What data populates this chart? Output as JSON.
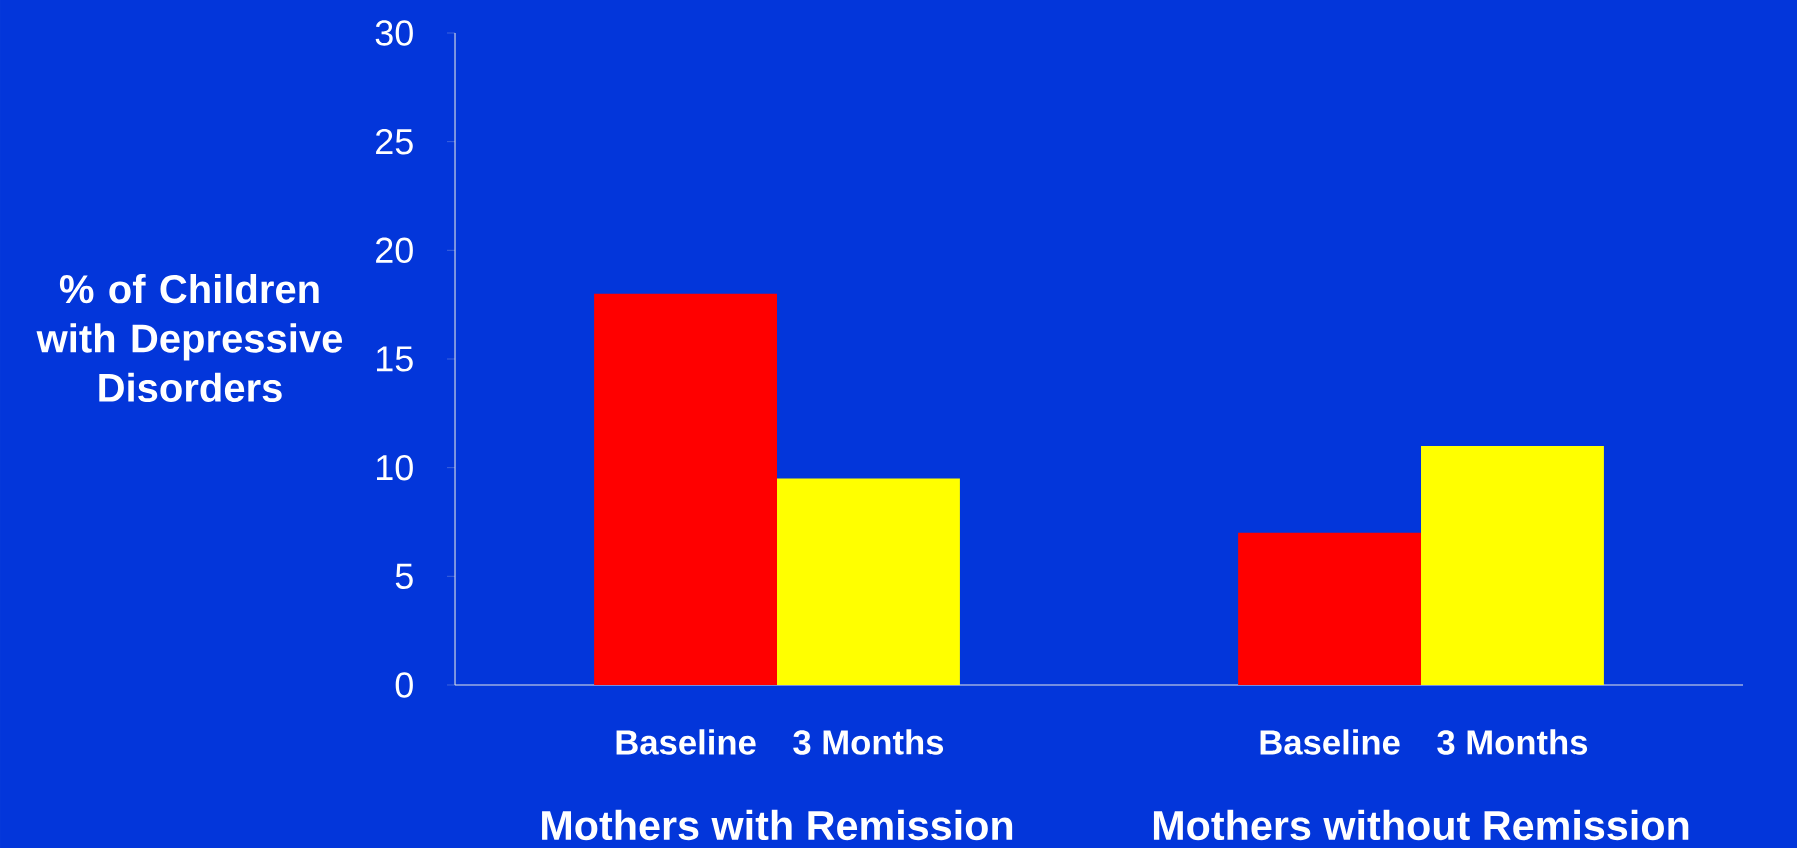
{
  "chart_data": {
    "type": "bar",
    "ylabel": "% of Children with Depressive Disorders",
    "categories": [
      "Mothers with Remission",
      "Mothers without Remission"
    ],
    "series": [
      {
        "name": "Baseline",
        "color": "#ff0000",
        "values": [
          18,
          7
        ]
      },
      {
        "name": "3 Months",
        "color": "#ffff00",
        "values": [
          9.5,
          11
        ]
      }
    ],
    "ylim": [
      0,
      30
    ],
    "yticks": [
      0,
      5,
      10,
      15,
      20,
      25,
      30
    ],
    "grid": false,
    "legend": false
  }
}
